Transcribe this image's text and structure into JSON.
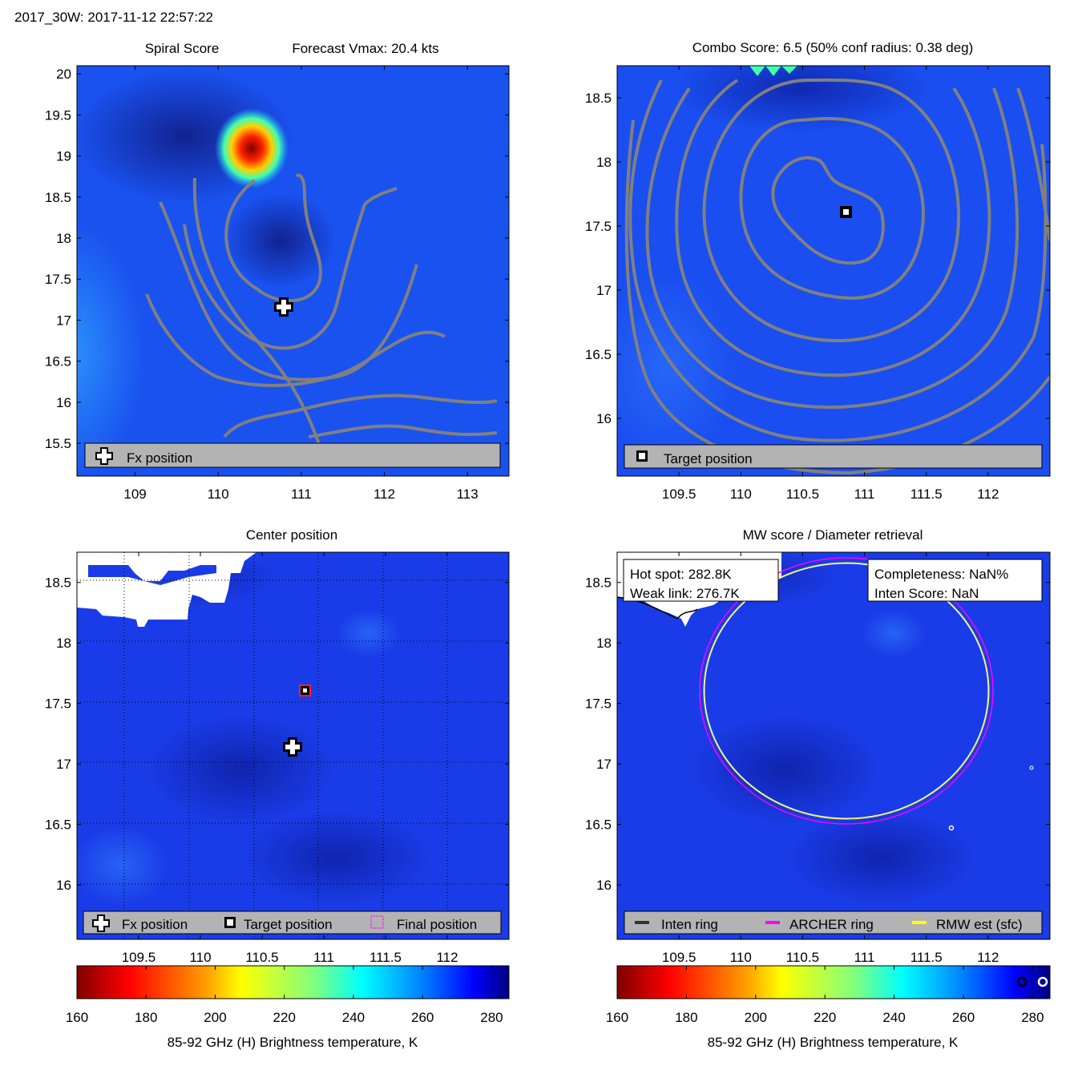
{
  "figure_title": "2017_30W: 2017-11-12 22:57:22",
  "colorbar_label": "85-92 GHz (H) Brightness temperature, K",
  "chart_data": [
    {
      "type": "heatmap",
      "panel": "spiral",
      "title_left": "Spiral Score",
      "title_right": "Forecast Vmax: 20.4 kts",
      "xlim": [
        108.3,
        113.5
      ],
      "ylim": [
        15.1,
        20.1
      ],
      "xticks": [
        109,
        110,
        111,
        112,
        113
      ],
      "yticks": [
        15.5,
        16,
        16.5,
        17,
        17.5,
        18,
        18.5,
        19,
        19.5,
        20
      ],
      "fx_position": [
        110.8,
        17.15
      ],
      "legend": [
        "Fx position"
      ],
      "background_color": "#1a52f0"
    },
    {
      "type": "heatmap",
      "panel": "combo",
      "title": "Combo Score: 6.5  (50% conf radius: 0.38 deg)",
      "xlim": [
        109.0,
        112.5
      ],
      "ylim": [
        15.55,
        18.75
      ],
      "xticks": [
        109.5,
        110,
        110.5,
        111,
        111.5,
        112
      ],
      "yticks": [
        16,
        16.5,
        17,
        17.5,
        18,
        18.5
      ],
      "target_position": [
        110.9,
        17.6
      ],
      "legend": [
        "Target position"
      ],
      "background_color": "#1a4ef0"
    },
    {
      "type": "heatmap",
      "panel": "center",
      "title": "Center position",
      "xlim": [
        109.0,
        112.5
      ],
      "ylim": [
        15.55,
        18.75
      ],
      "xticks": [
        109.5,
        110,
        110.5,
        111,
        111.5,
        112
      ],
      "yticks": [
        16,
        16.5,
        17,
        17.5,
        18,
        18.5
      ],
      "fx_position": [
        110.8,
        17.15
      ],
      "target_position": [
        110.9,
        17.6
      ],
      "legend": [
        "Fx position",
        "Target position",
        "Final position"
      ],
      "background_color": "#1a3ce8"
    },
    {
      "type": "heatmap",
      "panel": "mw",
      "title": "MW score / Diameter retrieval",
      "xlim": [
        109.0,
        112.5
      ],
      "ylim": [
        15.55,
        18.75
      ],
      "xticks": [
        109.5,
        110,
        110.5,
        111,
        111.5,
        112
      ],
      "yticks": [
        16,
        16.5,
        17,
        17.5,
        18,
        18.5
      ],
      "ring_center": [
        110.9,
        17.6
      ],
      "info_left": [
        "Hot spot: 282.8K",
        "Weak link: 276.7K"
      ],
      "info_right": [
        "Completeness: NaN%",
        "Inten Score: NaN"
      ],
      "legend": [
        "Inten ring",
        "ARCHER ring",
        "RMW est (sfc)"
      ],
      "legend_colors": [
        "#333333",
        "#ff00ff",
        "#ffff00"
      ],
      "background_color": "#1a3ce8"
    }
  ],
  "colorbar": {
    "ticks": [
      160,
      180,
      200,
      220,
      240,
      260,
      280
    ],
    "range": [
      160,
      285
    ]
  }
}
